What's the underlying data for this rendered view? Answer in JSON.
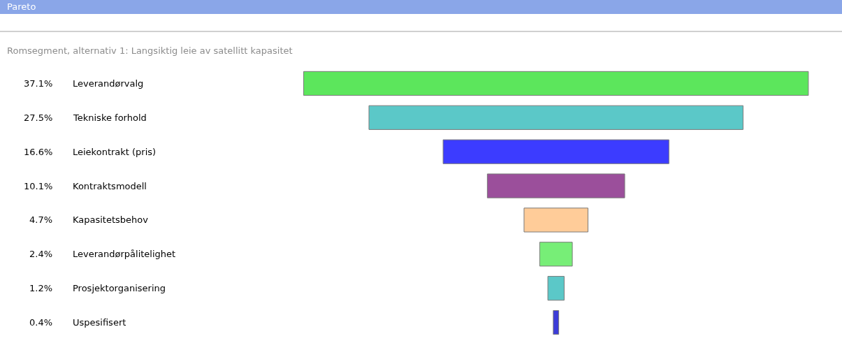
{
  "chart_data": {
    "type": "other",
    "title": "Pareto",
    "subtitle": "Romsegment, alternativ 1: Langsiktig leie av satellitt kapasitet",
    "categories": [
      "Leverandørvalg",
      "Tekniske forhold",
      "Leiekontrakt (pris)",
      "Kontraktsmodell",
      "Kapasitetsbehov",
      "Leverandørpålitelighet",
      "Prosjektorganisering",
      "Uspesifisert"
    ],
    "values": [
      37.1,
      27.5,
      16.6,
      10.1,
      4.7,
      2.4,
      1.2,
      0.4
    ],
    "value_labels": [
      "37.1%",
      "27.5%",
      "16.6%",
      "10.1%",
      "4.7%",
      "2.4%",
      "1.2%",
      "0.4%"
    ],
    "colors": [
      "#5ce65c",
      "#5bc8c8",
      "#3c3cff",
      "#9b4f9b",
      "#ffcc99",
      "#77ee77",
      "#5bc8c8",
      "#3c3cd8"
    ]
  }
}
